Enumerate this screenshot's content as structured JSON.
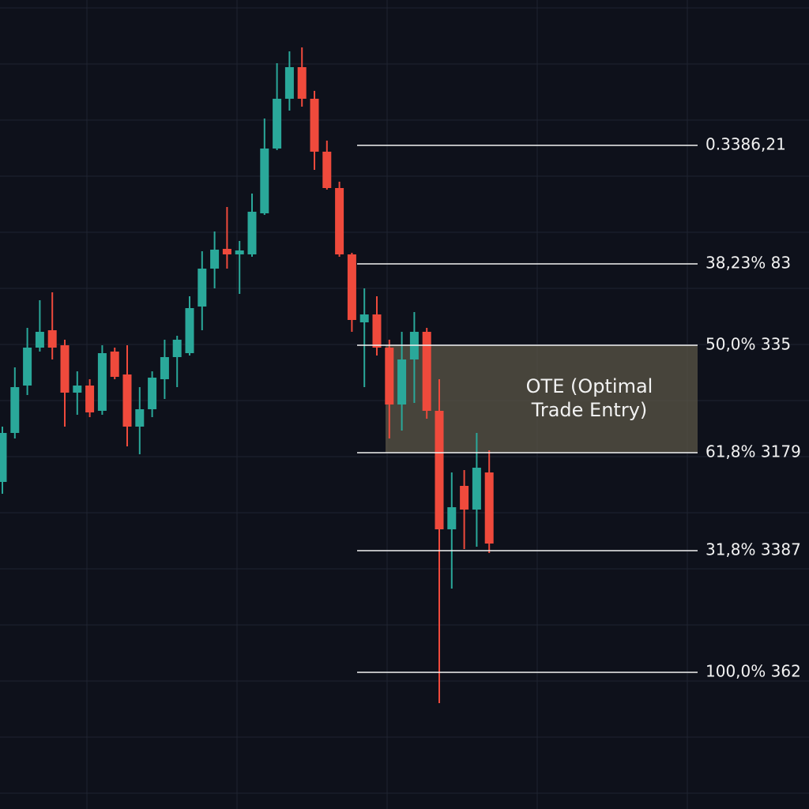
{
  "chart_data": {
    "type": "candlestick",
    "ylim": [
      0,
      1024
    ],
    "up_color": "#2aa89a",
    "down_color": "#ef4a3c",
    "open": [
      414,
      476,
      536,
      584,
      606,
      587,
      527,
      536,
      504,
      579,
      550,
      484,
      506,
      544,
      572,
      577,
      636,
      684,
      709,
      702,
      702,
      754,
      836,
      899,
      939,
      899,
      832,
      786,
      702,
      616,
      626,
      584,
      512,
      569,
      604,
      504,
      354,
      409,
      379,
      426
    ],
    "high": [
      484,
      559,
      609,
      644,
      654,
      594,
      554,
      544,
      587,
      584,
      587,
      534,
      554,
      594,
      599,
      649,
      706,
      731,
      762,
      719,
      779,
      874,
      944,
      959,
      964,
      909,
      846,
      794,
      704,
      659,
      649,
      594,
      604,
      629,
      609,
      544,
      426,
      429,
      476,
      454
    ],
    "low": [
      399,
      469,
      524,
      579,
      569,
      484,
      499,
      496,
      499,
      544,
      459,
      449,
      496,
      519,
      534,
      574,
      606,
      659,
      684,
      652,
      699,
      752,
      834,
      884,
      889,
      809,
      784,
      699,
      604,
      534,
      574,
      469,
      479,
      514,
      494,
      134,
      279,
      329,
      332,
      324
    ],
    "close": [
      476,
      534,
      584,
      604,
      584,
      527,
      536,
      502,
      577,
      547,
      484,
      506,
      546,
      572,
      594,
      634,
      684,
      708,
      702,
      707,
      756,
      836,
      899,
      939,
      899,
      832,
      786,
      702,
      619,
      626,
      584,
      512,
      569,
      604,
      504,
      354,
      382,
      379,
      432,
      336
    ],
    "levels": [
      {
        "value": 840,
        "label": "0.3386,21"
      },
      {
        "value": 690,
        "label": "38,23% 83"
      },
      {
        "value": 587,
        "label": "50,0% 335"
      },
      {
        "value": 451,
        "label": "61,8% 3179"
      },
      {
        "value": 327,
        "label": "31,8% 3387"
      },
      {
        "value": 173,
        "label": "100,0% 362"
      }
    ],
    "zone": {
      "lines": [
        "OTE (Optimal",
        "Trade Entry)"
      ],
      "from_level": 2,
      "to_level": 3,
      "color": "#5b5647"
    }
  }
}
